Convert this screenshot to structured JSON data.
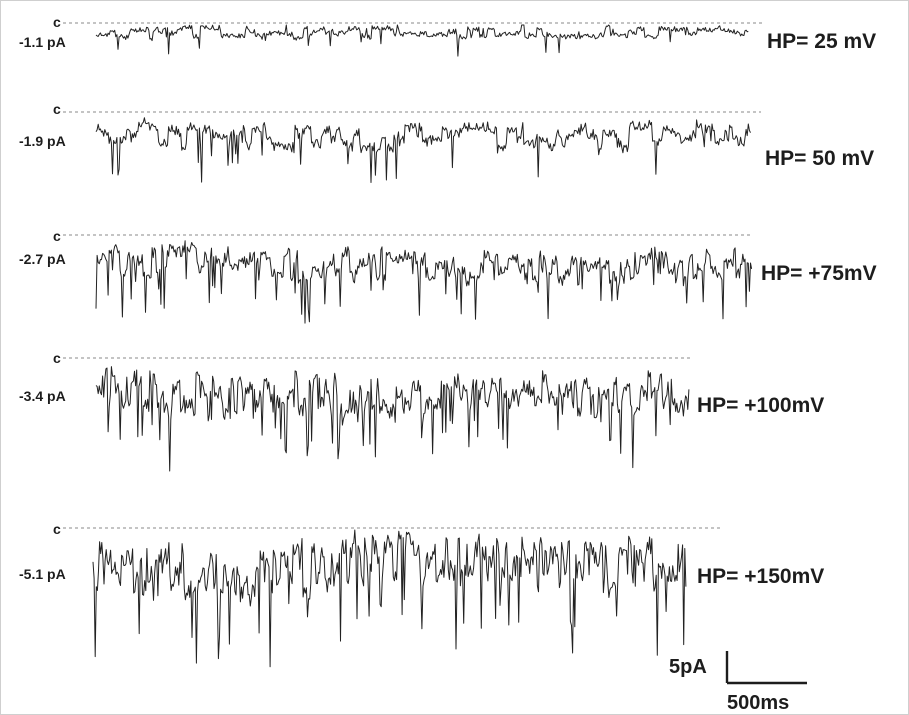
{
  "chart_data": {
    "type": "line",
    "title": "",
    "closed_level_label": "c",
    "colors": {
      "trace": "#222222",
      "baseline": "#888888",
      "text": "#1d1d1d"
    },
    "series": [
      {
        "name": "HP= 25 mV",
        "amplitude_label": "-1.1 pA",
        "mean_current_pA": -1.1
      },
      {
        "name": "HP= 50 mV",
        "amplitude_label": "-1.9 pA",
        "mean_current_pA": -1.9
      },
      {
        "name": "HP= +75mV",
        "amplitude_label": "-2.7 pA",
        "mean_current_pA": -2.7
      },
      {
        "name": "HP= +100mV",
        "amplitude_label": "-3.4 pA",
        "mean_current_pA": -3.4
      },
      {
        "name": "HP= +150mV",
        "amplitude_label": "-5.1 pA",
        "mean_current_pA": -5.1
      }
    ],
    "scale_bar": {
      "current_label": "5pA",
      "time_label": "500ms",
      "current_pA": 5,
      "time_ms": 500
    }
  }
}
